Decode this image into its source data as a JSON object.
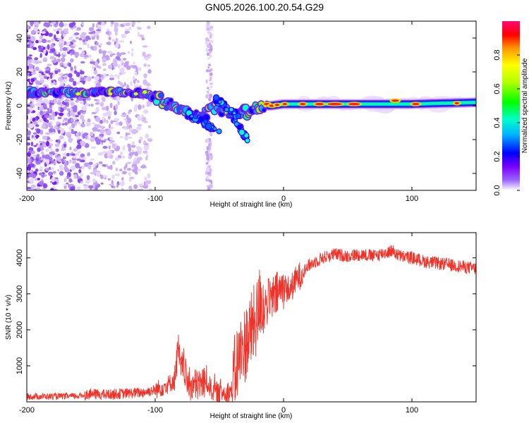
{
  "title": "GN05.2026.100.20.54.G29",
  "chart_data": [
    {
      "type": "heatmap",
      "name": "spectrogram",
      "xlabel": "Height of straight line (km)",
      "ylabel": "Frequency (Hz)",
      "xlim": [
        -200,
        150
      ],
      "ylim": [
        -50,
        50
      ],
      "xticks": [
        -200,
        -100,
        0,
        100
      ],
      "yticks": [
        -40,
        -20,
        0,
        20,
        40
      ],
      "colorbar": {
        "label": "Normalized spectral amplitude",
        "range": [
          0,
          1
        ],
        "ticks": [
          "0.0",
          "0.2",
          "0.4",
          "0.6",
          "0.8"
        ]
      },
      "ridge": [
        {
          "x": -200,
          "y": 8
        },
        {
          "x": -150,
          "y": 8
        },
        {
          "x": -120,
          "y": 8
        },
        {
          "x": -105,
          "y": 7
        },
        {
          "x": -95,
          "y": 3
        },
        {
          "x": -80,
          "y": -2
        },
        {
          "x": -65,
          "y": -8
        },
        {
          "x": -55,
          "y": 0
        },
        {
          "x": -45,
          "y": -3
        },
        {
          "x": -30,
          "y": -4
        },
        {
          "x": -20,
          "y": 0
        },
        {
          "x": -10,
          "y": 0
        },
        {
          "x": 0,
          "y": 1
        },
        {
          "x": 50,
          "y": 1
        },
        {
          "x": 100,
          "y": 1
        },
        {
          "x": 150,
          "y": 2
        }
      ]
    },
    {
      "type": "line",
      "name": "snr",
      "xlabel": "Height of straight line (km)",
      "ylabel": "SNR (10 * v/v)",
      "xlim": [
        -200,
        150
      ],
      "ylim": [
        0,
        4700
      ],
      "xticks": [
        -200,
        -100,
        0,
        100
      ],
      "yticks": [
        1000,
        2000,
        3000,
        4000
      ],
      "color": "#f03228",
      "series": [
        {
          "name": "SNR",
          "x": [
            -200,
            -180,
            -160,
            -150,
            -140,
            -120,
            -110,
            -100,
            -95,
            -90,
            -85,
            -82,
            -80,
            -78,
            -75,
            -70,
            -65,
            -60,
            -55,
            -50,
            -45,
            -40,
            -38,
            -35,
            -30,
            -25,
            -20,
            -18,
            -15,
            -12,
            -10,
            -5,
            0,
            5,
            10,
            15,
            20,
            25,
            30,
            40,
            50,
            60,
            70,
            80,
            85,
            90,
            100,
            110,
            120,
            130,
            140,
            150
          ],
          "y": [
            150,
            150,
            160,
            220,
            200,
            240,
            260,
            330,
            400,
            480,
            600,
            1500,
            800,
            1100,
            500,
            450,
            500,
            550,
            300,
            250,
            280,
            300,
            800,
            1200,
            1600,
            2000,
            2400,
            2900,
            2600,
            2800,
            2800,
            3000,
            3200,
            3100,
            3400,
            3600,
            3800,
            3900,
            4000,
            4100,
            4050,
            4100,
            4050,
            4150,
            4200,
            4050,
            4000,
            3900,
            3850,
            3800,
            3750,
            3700
          ]
        }
      ]
    }
  ]
}
